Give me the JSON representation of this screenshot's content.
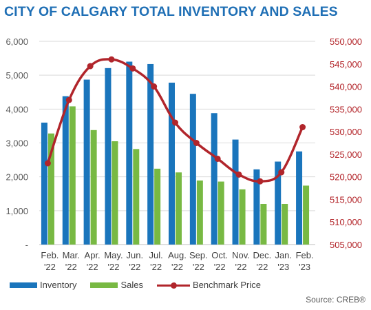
{
  "title": "CITY OF CALGARY TOTAL INVENTORY AND SALES",
  "source": "Source: CREB®",
  "colors": {
    "title": "#1f6fb5",
    "inventory": "#1a75bc",
    "sales": "#78b943",
    "benchmark": "#b1252b",
    "grid": "#d9d9d9"
  },
  "legend": {
    "inventory": "Inventory",
    "sales": "Sales",
    "benchmark": "Benchmark Price"
  },
  "chart_data": {
    "type": "bar",
    "title": "CITY OF CALGARY TOTAL INVENTORY AND SALES",
    "categories": [
      [
        "Feb.",
        "'22"
      ],
      [
        "Mar.",
        "'22"
      ],
      [
        "Apr.",
        "'22"
      ],
      [
        "May.",
        "'22"
      ],
      [
        "Jun.",
        "'22"
      ],
      [
        "Jul.",
        "'22"
      ],
      [
        "Aug.",
        "'22"
      ],
      [
        "Sep.",
        "'22"
      ],
      [
        "Oct.",
        "'22"
      ],
      [
        "Nov.",
        "'22"
      ],
      [
        "Dec.",
        "'22"
      ],
      [
        "Jan.",
        "'23"
      ],
      [
        "Feb.",
        "'23"
      ]
    ],
    "series": [
      {
        "name": "Inventory",
        "axis": "left",
        "values": [
          3600,
          4380,
          4870,
          5210,
          5400,
          5330,
          4780,
          4450,
          3880,
          3100,
          2220,
          2450,
          2750
        ]
      },
      {
        "name": "Sales",
        "axis": "left",
        "values": [
          3280,
          4080,
          3380,
          3050,
          2820,
          2240,
          2130,
          1890,
          1860,
          1630,
          1200,
          1200,
          1740
        ]
      },
      {
        "name": "Benchmark Price",
        "axis": "right",
        "type": "line",
        "values": [
          523000,
          537000,
          544500,
          546000,
          544000,
          540000,
          532000,
          527500,
          524000,
          520500,
          519000,
          521000,
          531000
        ]
      }
    ],
    "ylim_left": [
      0,
      6000
    ],
    "yticks_left": [
      "-",
      "1,000",
      "2,000",
      "3,000",
      "4,000",
      "5,000",
      "6,000"
    ],
    "ylim_right": [
      505000,
      550000
    ],
    "yticks_right": [
      "505,000",
      "510,000",
      "515,000",
      "520,000",
      "525,000",
      "530,000",
      "535,000",
      "540,000",
      "545,000",
      "550,000"
    ],
    "grid": true,
    "legend_position": "bottom-left"
  }
}
